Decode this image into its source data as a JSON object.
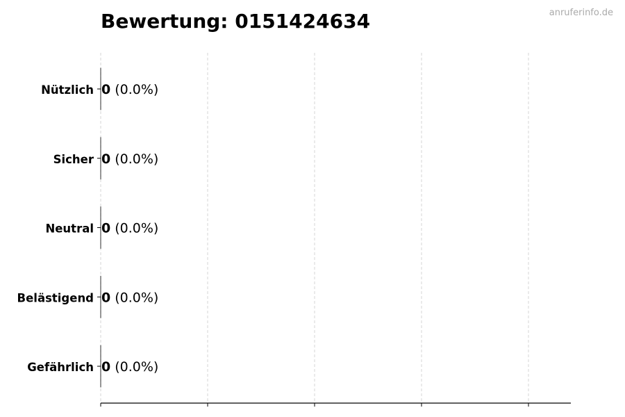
{
  "chart_data": {
    "type": "bar",
    "orientation": "horizontal",
    "title": "Bewertung: 0151424634",
    "watermark": "anruferinfo.de",
    "categories": [
      "Nützlich",
      "Sicher",
      "Neutral",
      "Belästigend",
      "Gefährlich"
    ],
    "values": [
      0,
      0,
      0,
      0,
      0
    ],
    "labels": [
      {
        "count": "0",
        "percent": "(0.0%)"
      },
      {
        "count": "0",
        "percent": "(0.0%)"
      },
      {
        "count": "0",
        "percent": "(0.0%)"
      },
      {
        "count": "0",
        "percent": "(0.0%)"
      },
      {
        "count": "0",
        "percent": "(0.0%)"
      }
    ],
    "xlabel": "",
    "ylabel": "",
    "grid": "x-axis, dashed",
    "colors": {
      "bar_edge": "#000000",
      "grid": "#cccccc",
      "watermark": "#aaaaaa"
    }
  }
}
